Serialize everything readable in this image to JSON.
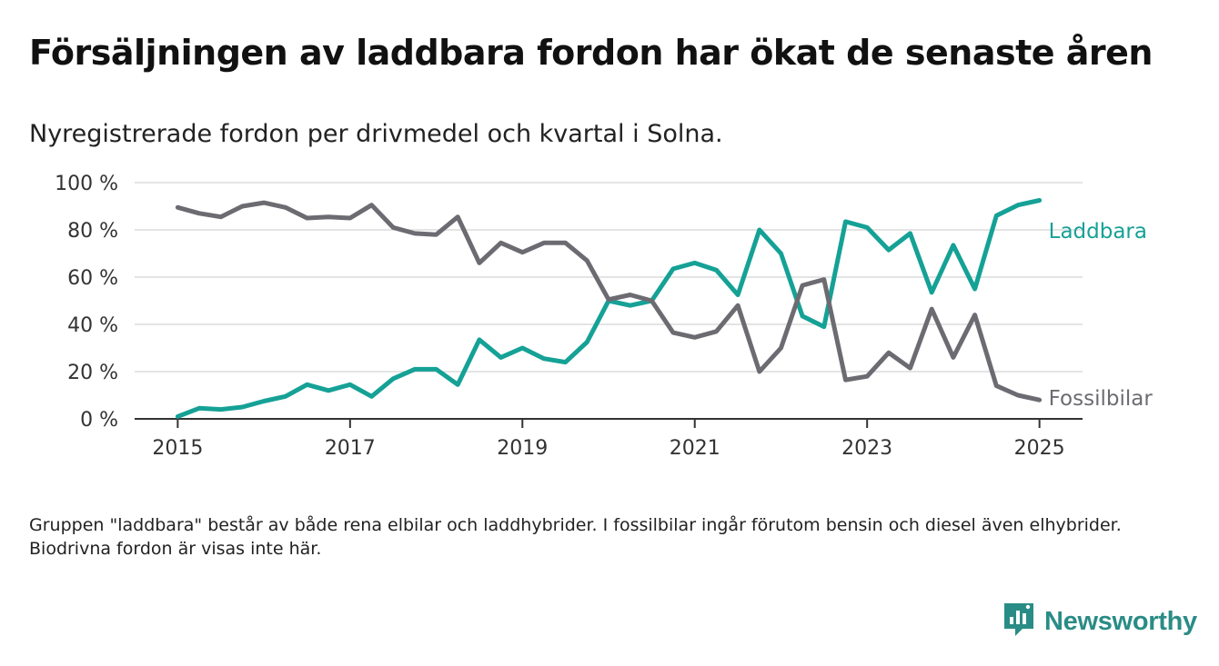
{
  "title": "Försäljningen av laddbara fordon har ökat de senaste åren",
  "subtitle": "Nyregistrerade fordon per drivmedel och kvartal i Solna.",
  "note": "Gruppen \"laddbara\" består av både rena elbilar och laddhybrider. I fossilbilar ingår förutom bensin och diesel även elhybrider. Biodrivna fordon är visas inte här.",
  "brand": {
    "name": "Newsworthy",
    "color": "#2a8c86",
    "icon": "newsworthy-logo-icon"
  },
  "chart_data": {
    "type": "line",
    "title": "",
    "xlabel": "",
    "ylabel": "",
    "x": [
      2015,
      2015.25,
      2015.5,
      2015.75,
      2016,
      2016.25,
      2016.5,
      2016.75,
      2017,
      2017.25,
      2017.5,
      2017.75,
      2018,
      2018.25,
      2018.5,
      2018.75,
      2019,
      2019.25,
      2019.5,
      2019.75,
      2020,
      2020.25,
      2020.5,
      2020.75,
      2021,
      2021.25,
      2021.5,
      2021.75,
      2022,
      2022.25,
      2022.5,
      2022.75,
      2023,
      2023.25,
      2023.5,
      2023.75,
      2024,
      2024.25,
      2024.5,
      2024.75,
      2025
    ],
    "xlim": [
      2014.5,
      2025.5
    ],
    "ylim": [
      0,
      100
    ],
    "x_ticks": [
      2015,
      2017,
      2019,
      2021,
      2023,
      2025
    ],
    "x_tick_labels": [
      "2015",
      "2017",
      "2019",
      "2021",
      "2023",
      "2025"
    ],
    "y_ticks": [
      0,
      20,
      40,
      60,
      80,
      100
    ],
    "y_tick_labels": [
      "0 %",
      "20 %",
      "40 %",
      "60 %",
      "80 %",
      "100 %"
    ],
    "grid": "horizontal",
    "legend": "inline labels at line ends",
    "series": [
      {
        "name": "Laddbara",
        "color": "#15a196",
        "values": [
          1,
          4.5,
          4,
          5,
          7.5,
          9.5,
          14.5,
          12,
          14.5,
          9.5,
          17,
          21,
          21,
          14.5,
          33.5,
          26,
          30,
          25.5,
          24,
          32.5,
          50,
          48,
          50,
          63.5,
          66,
          63,
          52.5,
          80,
          70,
          43.5,
          39,
          83.5,
          81,
          71.5,
          78.5,
          53.5,
          73.5,
          55,
          86,
          90.5,
          92.5
        ]
      },
      {
        "name": "Fossilbilar",
        "color": "#6d6b72",
        "values": [
          89.5,
          87,
          85.5,
          90,
          91.5,
          89.5,
          85,
          85.5,
          85,
          90.5,
          81,
          78.5,
          78,
          85.5,
          66,
          74.5,
          70.5,
          74.5,
          74.5,
          67,
          50.5,
          52.5,
          50,
          36.5,
          34.5,
          37,
          48,
          20,
          30,
          56.5,
          59,
          16.5,
          18,
          28,
          21.5,
          46.5,
          26,
          44,
          14,
          10,
          8
        ]
      }
    ]
  }
}
